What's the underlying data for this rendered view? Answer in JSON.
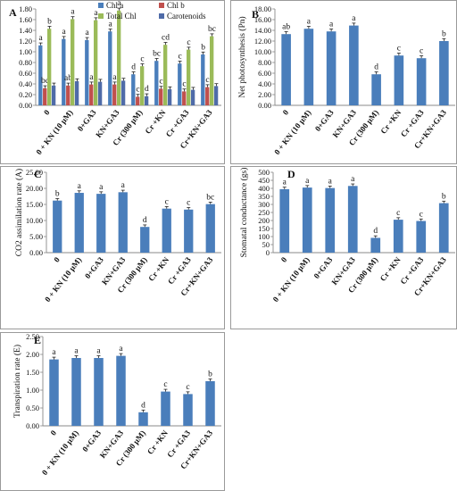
{
  "categories": [
    "0",
    "0 + KN (10 μM)",
    "0+GA3",
    "KN+GA3",
    "Cr (300 μM)",
    "Cr +KN",
    "Cr +GA3",
    "Cr+KN+GA3"
  ],
  "colors": {
    "bar_blue": "#4A7EBB",
    "chl_a": "#4A7EBB",
    "chl_b": "#C0504D",
    "total_chl": "#9BBB59",
    "carotenoids": "#4F6BA8",
    "axis": "#888888",
    "grid": "#D9D9D9"
  },
  "chart_data": [
    {
      "panel": "A",
      "type": "bar",
      "xlabel": "",
      "ylabel": "",
      "ylim": [
        0,
        1.8
      ],
      "yticks": [
        "0.00",
        "0.20",
        "0.40",
        "0.60",
        "0.80",
        "1.00",
        "1.20",
        "1.40",
        "1.60",
        "1.80"
      ],
      "legend": [
        "Chl a",
        "Chl b",
        "Total Chl",
        "Carotenoids"
      ],
      "legend_position": "top",
      "series": [
        {
          "name": "Chl a",
          "values": [
            1.12,
            1.24,
            1.22,
            1.38,
            0.58,
            0.83,
            0.78,
            0.95
          ],
          "letters": [
            "a",
            "a",
            "a",
            "a",
            "d",
            "bc",
            "c",
            "b"
          ]
        },
        {
          "name": "Chl b",
          "values": [
            0.32,
            0.37,
            0.39,
            0.39,
            0.16,
            0.31,
            0.26,
            0.34
          ],
          "letters": [
            "bc",
            "ab",
            "a",
            "a",
            "c",
            "c",
            "c",
            "c"
          ]
        },
        {
          "name": "Total Chl",
          "values": [
            1.43,
            1.61,
            1.59,
            1.77,
            0.73,
            1.13,
            1.04,
            1.29
          ],
          "letters": [
            "b",
            "a",
            "a",
            "a",
            "c",
            "cd",
            "c",
            "bc"
          ]
        },
        {
          "name": "Carotenoids",
          "values": [
            0.37,
            0.45,
            0.44,
            0.46,
            0.17,
            0.3,
            0.29,
            0.36
          ],
          "letters": [
            "",
            "",
            "",
            "",
            "d",
            "",
            "",
            ""
          ]
        }
      ]
    },
    {
      "panel": "B",
      "type": "bar",
      "xlabel": "",
      "ylabel": "Net photosynthesis (Pn)",
      "ylim": [
        0,
        18
      ],
      "yticks": [
        "0.00",
        "2.00",
        "4.00",
        "6.00",
        "8.00",
        "10.00",
        "12.00",
        "14.00",
        "16.00",
        "18.00"
      ],
      "series": [
        {
          "name": "",
          "values": [
            13.3,
            14.3,
            13.8,
            14.9,
            5.8,
            9.3,
            8.8,
            12.0
          ],
          "letters": [
            "ab",
            "a",
            "a",
            "a",
            "d",
            "c",
            "c",
            "b"
          ]
        }
      ]
    },
    {
      "panel": "C",
      "type": "bar",
      "xlabel": "",
      "ylabel": "CO2 assimilation rate (A)",
      "ylim": [
        0,
        25
      ],
      "yticks": [
        "0.00",
        "5.00",
        "10.00",
        "15.00",
        "20.00",
        "25.00"
      ],
      "series": [
        {
          "name": "",
          "values": [
            16.2,
            18.6,
            18.3,
            18.8,
            8.0,
            13.7,
            13.4,
            15.1
          ],
          "letters": [
            "b",
            "a",
            "a",
            "a",
            "d",
            "c",
            "c",
            "bc"
          ]
        }
      ]
    },
    {
      "panel": "D",
      "type": "bar",
      "xlabel": "",
      "ylabel": "Stomatal conductance (gs)",
      "ylim": [
        0,
        500
      ],
      "yticks": [
        "0",
        "50",
        "100",
        "150",
        "200",
        "250",
        "300",
        "350",
        "400",
        "450",
        "500"
      ],
      "series": [
        {
          "name": "",
          "values": [
            395,
            405,
            402,
            415,
            92,
            205,
            197,
            308
          ],
          "letters": [
            "a",
            "a",
            "a",
            "a",
            "d",
            "c",
            "c",
            "b"
          ]
        }
      ]
    },
    {
      "panel": "E",
      "type": "bar",
      "xlabel": "",
      "ylabel": "Transpiration rate (E)",
      "ylim": [
        0,
        2.5
      ],
      "yticks": [
        "0.00",
        "0.50",
        "1.00",
        "1.50",
        "2.00",
        "2.50"
      ],
      "series": [
        {
          "name": "",
          "values": [
            1.86,
            1.9,
            1.9,
            1.96,
            0.38,
            0.96,
            0.89,
            1.25
          ],
          "letters": [
            "a",
            "a",
            "a",
            "a",
            "d",
            "c",
            "c",
            "b"
          ]
        }
      ]
    }
  ]
}
